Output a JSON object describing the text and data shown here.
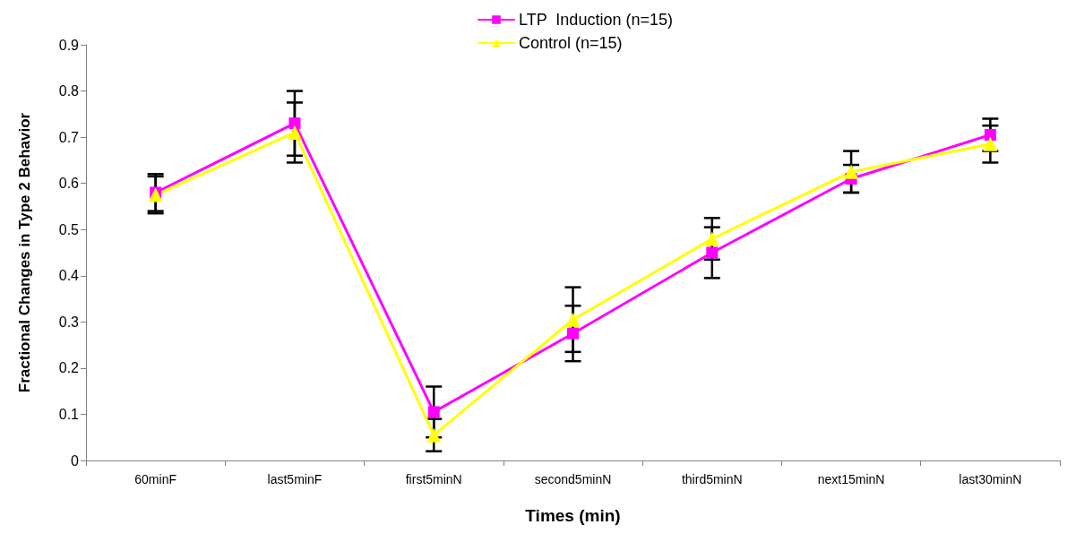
{
  "chart_data": {
    "type": "line",
    "xlabel": "Times (min)",
    "ylabel": "Fractional Changes in Type 2 Behavior",
    "categories": [
      "60minF",
      "last5minF",
      "first5minN",
      "second5minN",
      "third5minN",
      "next15minN",
      "last30minN"
    ],
    "series": [
      {
        "name": "LTP  Induction (n=15)",
        "color": "#ff00ff",
        "marker": "square",
        "values": [
          0.58,
          0.73,
          0.105,
          0.275,
          0.45,
          0.61,
          0.705
        ],
        "errors": [
          0.04,
          0.07,
          0.055,
          0.06,
          0.055,
          0.03,
          0.035
        ]
      },
      {
        "name": "Control (n=15)",
        "color": "#ffff00",
        "marker": "triangle",
        "values": [
          0.575,
          0.71,
          0.055,
          0.305,
          0.48,
          0.625,
          0.685
        ],
        "errors": [
          0.04,
          0.065,
          0.035,
          0.07,
          0.045,
          0.045,
          0.04
        ]
      }
    ],
    "ylim": [
      0,
      0.9
    ],
    "yticks": [
      0,
      0.1,
      0.2,
      0.3,
      0.4,
      0.5,
      0.6,
      0.7,
      0.8,
      0.9
    ],
    "grid": false,
    "legend": "top",
    "line_style": "solid"
  }
}
